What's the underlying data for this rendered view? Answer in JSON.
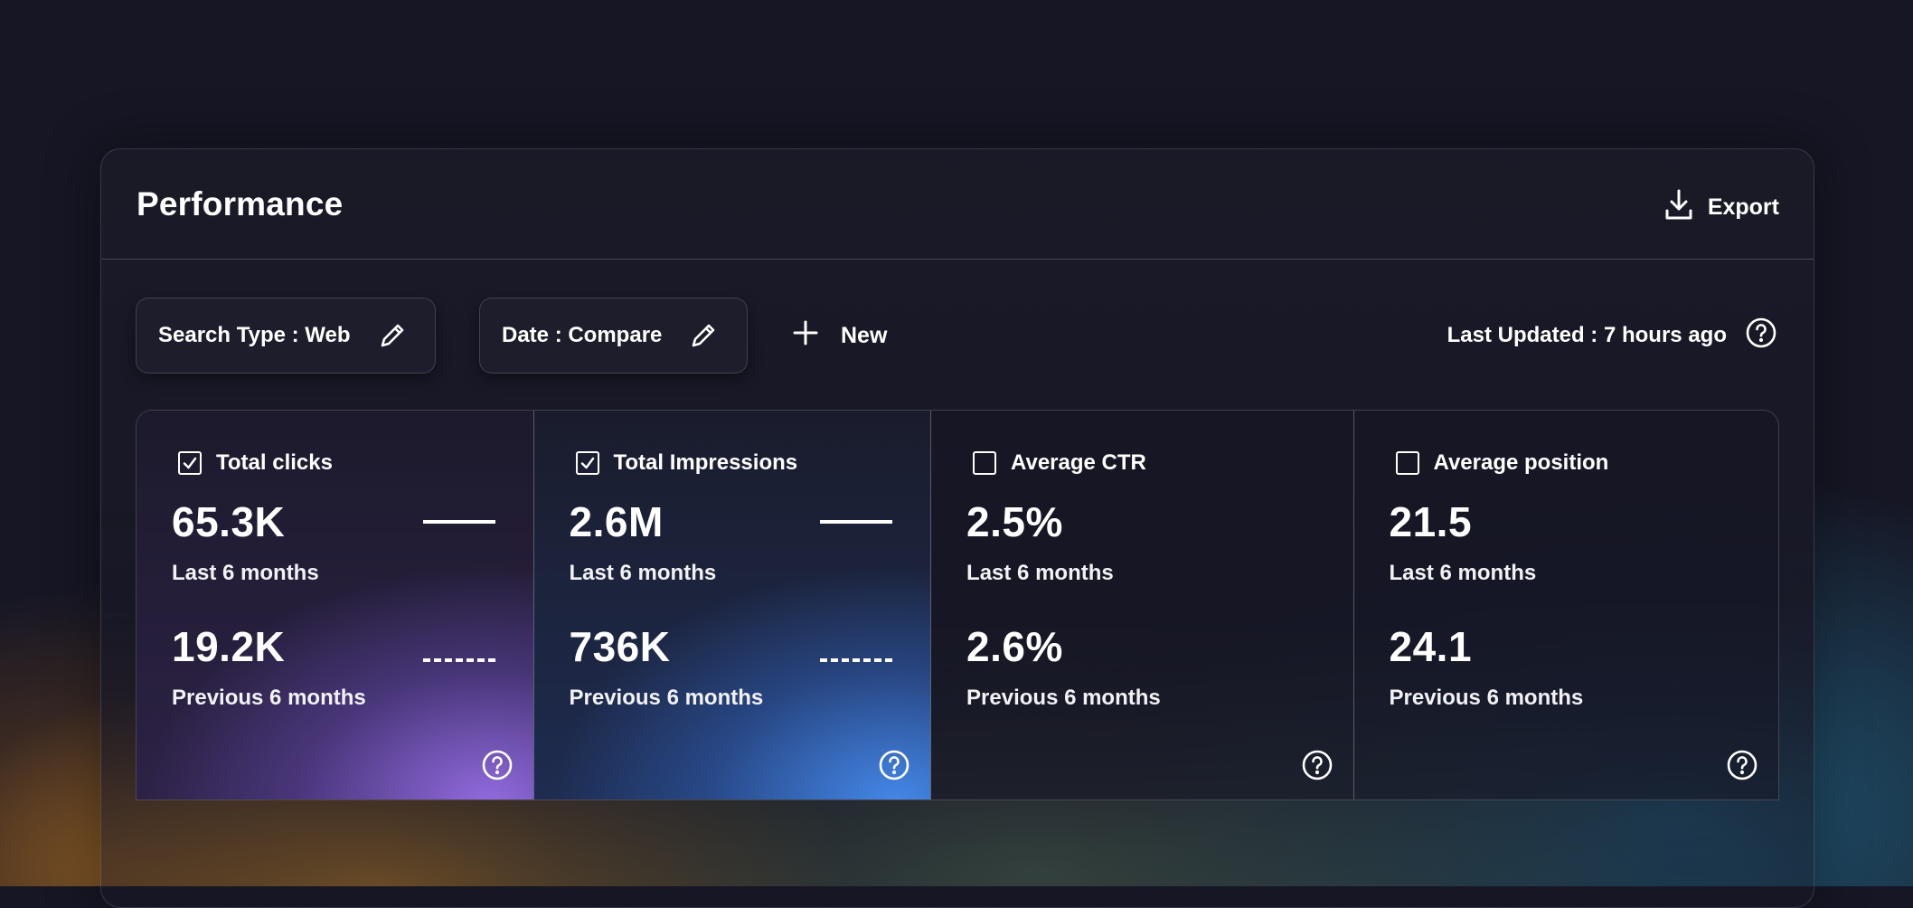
{
  "header": {
    "title": "Performance",
    "export_label": "Export"
  },
  "toolbar": {
    "filters": [
      {
        "label": "Search Type : Web"
      },
      {
        "label": "Date : Compare"
      }
    ],
    "new_label": "New",
    "last_updated": "Last Updated : 7 hours ago"
  },
  "metrics": [
    {
      "label": "Total clicks",
      "checked": true,
      "current": "65.3K",
      "current_period": "Last 6 months",
      "previous": "19.2K",
      "previous_period": "Previous 6 months",
      "accent": "#8f6fe0"
    },
    {
      "label": "Total Impressions",
      "checked": true,
      "current": "2.6M",
      "current_period": "Last 6 months",
      "previous": "736K",
      "previous_period": "Previous 6 months",
      "accent": "#4a8ff0"
    },
    {
      "label": "Average CTR",
      "checked": false,
      "current": "2.5%",
      "current_period": "Last 6 months",
      "previous": "2.6%",
      "previous_period": "Previous 6 months"
    },
    {
      "label": "Average position",
      "checked": false,
      "current": "21.5",
      "current_period": "Last 6 months",
      "previous": "24.1",
      "previous_period": "Previous 6 months"
    }
  ],
  "icons": {
    "export": "download-icon",
    "edit": "pencil-icon",
    "new": "plus-icon",
    "help": "question-circle-icon",
    "checked": "checkbox-checked-icon",
    "unchecked": "checkbox-empty-icon"
  }
}
